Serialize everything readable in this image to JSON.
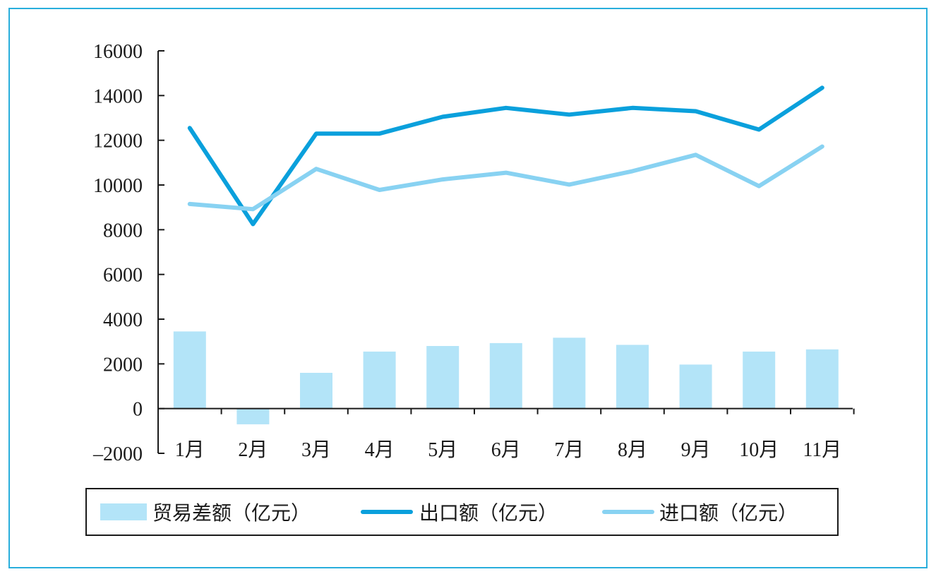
{
  "chart_data": {
    "type": "bar+line",
    "categories": [
      "1月",
      "2月",
      "3月",
      "4月",
      "5月",
      "6月",
      "7月",
      "8月",
      "9月",
      "10月",
      "11月"
    ],
    "y_ticks": [
      "16000",
      "14000",
      "12000",
      "10000",
      "8000",
      "6000",
      "4000",
      "2000",
      "0",
      "–2000"
    ],
    "ylim": [
      -2000,
      16000
    ],
    "grid": false,
    "legend_position": "bottom",
    "series": [
      {
        "name": "贸易差额（亿元）",
        "type": "bar",
        "color": "#b3e4f8",
        "values": [
          3450,
          -700,
          1600,
          2550,
          2800,
          2930,
          3170,
          2850,
          1970,
          2550,
          2650
        ]
      },
      {
        "name": "出口额（亿元）",
        "type": "line",
        "color": "#0aa0dc",
        "values": [
          12550,
          8250,
          12300,
          12300,
          13050,
          13450,
          13150,
          13450,
          13300,
          12480,
          14350
        ]
      },
      {
        "name": "进口额（亿元）",
        "type": "line",
        "color": "#88d2f2",
        "values": [
          9150,
          8920,
          10720,
          9780,
          10250,
          10550,
          10020,
          10620,
          11350,
          9950,
          11720
        ]
      }
    ]
  },
  "colors": {
    "frame": "#29aedc",
    "axis": "#1a1a1a"
  }
}
